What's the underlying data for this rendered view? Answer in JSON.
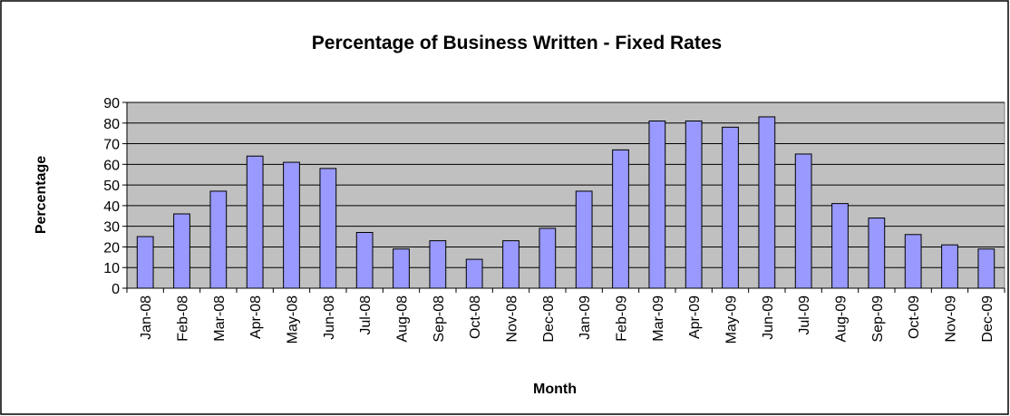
{
  "chart_data": {
    "type": "bar",
    "title": "Percentage of Business Written - Fixed Rates",
    "x_label": "Month",
    "y_label": "Percentage",
    "categories": [
      "Jan-08",
      "Feb-08",
      "Mar-08",
      "Apr-08",
      "May-08",
      "Jun-08",
      "Jul-08",
      "Aug-08",
      "Sep-08",
      "Oct-08",
      "Nov-08",
      "Dec-08",
      "Jan-09",
      "Feb-09",
      "Mar-09",
      "Apr-09",
      "May-09",
      "Jun-09",
      "Jul-09",
      "Aug-09",
      "Sep-09",
      "Oct-09",
      "Nov-09",
      "Dec-09"
    ],
    "values": [
      25,
      36,
      47,
      64,
      61,
      58,
      27,
      19,
      23,
      14,
      23,
      29,
      47,
      67,
      81,
      81,
      78,
      83,
      65,
      41,
      34,
      26,
      21,
      19
    ],
    "color": "#9999ff",
    "ylim": [
      0,
      90
    ],
    "yticks": [
      0,
      10,
      20,
      30,
      40,
      50,
      60,
      70,
      80,
      90
    ],
    "grid": true
  }
}
